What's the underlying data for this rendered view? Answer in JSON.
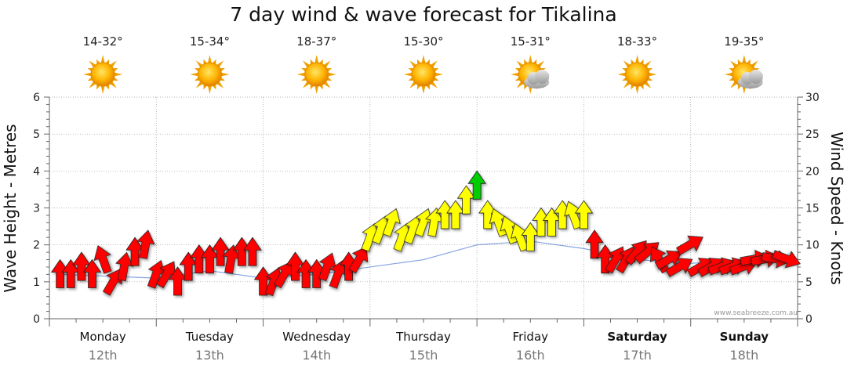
{
  "title": "7 day wind & wave forecast for Tikalina",
  "credit": "www.seabreeze.com.au",
  "days": [
    {
      "day": "Monday",
      "date": "12th",
      "temp": "14-32°",
      "icon": "sun-icon",
      "weekend": false
    },
    {
      "day": "Tuesday",
      "date": "13th",
      "temp": "15-34°",
      "icon": "sun-icon",
      "weekend": false
    },
    {
      "day": "Wednesday",
      "date": "14th",
      "temp": "18-37°",
      "icon": "sun-icon",
      "weekend": false
    },
    {
      "day": "Thursday",
      "date": "15th",
      "temp": "15-30°",
      "icon": "sun-icon",
      "weekend": false
    },
    {
      "day": "Friday",
      "date": "16th",
      "temp": "15-31°",
      "icon": "partly-cloudy-icon",
      "weekend": false
    },
    {
      "day": "Saturday",
      "date": "17th",
      "temp": "18-33°",
      "icon": "sun-icon",
      "weekend": true
    },
    {
      "day": "Sunday",
      "date": "18th",
      "temp": "19-35°",
      "icon": "partly-cloudy-icon",
      "weekend": true
    }
  ],
  "colors": {
    "calm": "#ff0000",
    "moderate": "#ffff00",
    "strong": "#00cc00",
    "grid": "#999999"
  },
  "chart_data": {
    "type": "line",
    "title": "7 day wind & wave forecast for Tikalina",
    "left_axis": {
      "label": "Wave Height - Metres",
      "min": 0,
      "max": 6,
      "ticks": [
        0,
        1,
        2,
        3,
        4,
        5,
        6
      ]
    },
    "right_axis": {
      "label": "Wind Speed - Knots",
      "min": 0,
      "max": 30,
      "ticks": [
        0,
        5,
        10,
        15,
        20,
        25,
        30
      ]
    },
    "x_range_days": [
      0,
      7
    ],
    "grid": true,
    "series": [
      {
        "name": "Wind",
        "x": [
          0.1,
          0.2,
          0.3,
          0.4,
          0.5,
          0.6,
          0.7,
          0.8,
          0.9,
          1.0,
          1.1,
          1.2,
          1.3,
          1.4,
          1.5,
          1.6,
          1.7,
          1.8,
          1.9,
          2.0,
          2.1,
          2.2,
          2.3,
          2.4,
          2.5,
          2.6,
          2.7,
          2.8,
          2.9,
          3.0,
          3.1,
          3.2,
          3.3,
          3.4,
          3.5,
          3.6,
          3.7,
          3.8,
          3.9,
          4.0,
          4.1,
          4.2,
          4.3,
          4.4,
          4.5,
          4.6,
          4.7,
          4.8,
          4.9,
          5.0,
          5.1,
          5.2,
          5.3,
          5.4,
          5.5,
          5.6,
          5.7,
          5.8,
          5.9,
          6.0,
          6.1,
          6.2,
          6.3,
          6.4,
          6.5,
          6.6,
          6.7,
          6.8,
          6.9
        ],
        "knots": [
          8,
          8,
          9,
          8,
          10,
          7,
          9,
          11,
          12,
          8,
          8,
          7,
          9,
          10,
          10,
          11,
          10,
          11,
          11,
          7,
          7,
          8,
          9,
          8,
          8,
          9,
          8,
          9,
          10,
          13,
          14,
          15,
          13,
          14,
          15,
          15,
          16,
          16,
          18,
          20,
          16,
          15,
          14,
          13,
          13,
          15,
          15,
          16,
          16,
          16,
          12,
          10,
          10,
          10,
          11,
          11,
          10,
          10,
          9,
          12,
          9,
          9,
          9,
          9,
          9,
          10,
          10,
          10,
          10
        ],
        "dir": [
          0,
          0,
          0,
          0,
          -20,
          30,
          10,
          0,
          10,
          20,
          30,
          0,
          0,
          0,
          0,
          0,
          10,
          0,
          0,
          0,
          20,
          30,
          0,
          0,
          0,
          20,
          20,
          0,
          30,
          20,
          20,
          20,
          20,
          20,
          20,
          10,
          0,
          0,
          0,
          0,
          0,
          -20,
          -20,
          -20,
          0,
          0,
          0,
          0,
          -20,
          0,
          0,
          0,
          30,
          30,
          40,
          50,
          -30,
          60,
          60,
          60,
          60,
          60,
          70,
          70,
          70,
          80,
          80,
          100,
          110
        ]
      },
      {
        "name": "Wave",
        "x": [
          0.1,
          1.0,
          1.5,
          2.0,
          2.5,
          3.0,
          3.5,
          4.0,
          4.5,
          5.0,
          5.5,
          6.0,
          6.5,
          6.9
        ],
        "metres": [
          1.2,
          1.1,
          1.3,
          1.1,
          1.2,
          1.4,
          1.6,
          2.0,
          2.1,
          1.9,
          1.6,
          1.5,
          1.6,
          1.5
        ]
      }
    ]
  }
}
